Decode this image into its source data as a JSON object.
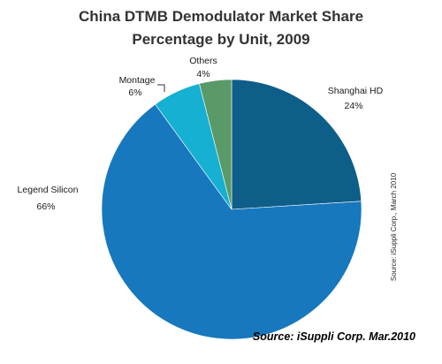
{
  "chart_data": {
    "type": "pie",
    "title_lines": [
      "China DTMB Demodulator Market Share",
      "Percentage by Unit, 2009"
    ],
    "slices": [
      {
        "label": "Shanghai HD",
        "value": 24,
        "value_label": "24%",
        "color": "#0e5e8a"
      },
      {
        "label": "Legend Silicon",
        "value": 66,
        "value_label": "66%",
        "color": "#1778bd"
      },
      {
        "label": "Montage",
        "value": 6,
        "value_label": "6%",
        "color": "#15b0d2"
      },
      {
        "label": "Others",
        "value": 4,
        "value_label": "4%",
        "color": "#5a9a68"
      }
    ],
    "side_source": "Source: iSuppli Corp., March 2010",
    "bottom_source": "Source: iSuppli Corp. Mar.2010"
  }
}
